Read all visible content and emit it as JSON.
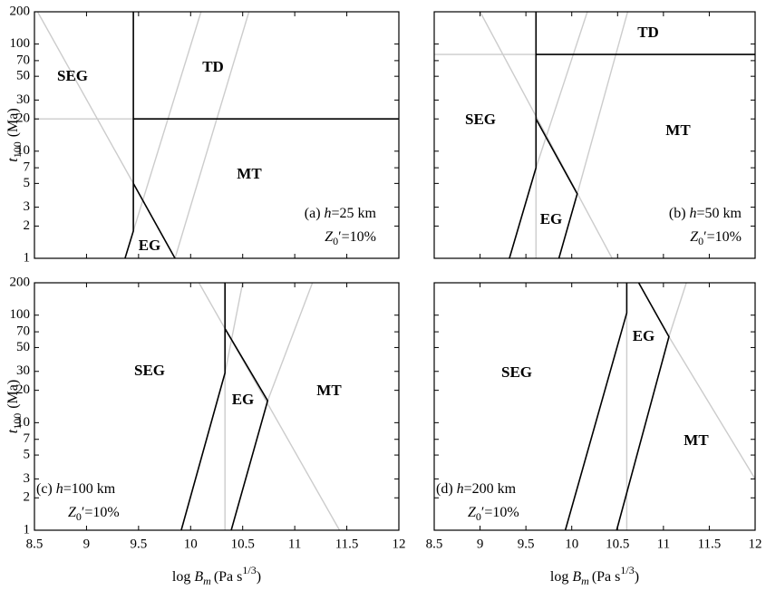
{
  "chart_data": [
    {
      "type": "line",
      "annotation": {
        "tag": "(a)",
        "symbol": "h",
        "text": "=25 km"
      },
      "z_annotation": {
        "symbol": "Z",
        "subscript": "0",
        "text": "′=10%"
      },
      "regions": [
        "SEG",
        "TD",
        "MT",
        "EG"
      ],
      "ylabel": {
        "symbol": "t",
        "subscript": "100",
        "unit": "(Ma)"
      },
      "xlim": [
        8.5,
        12
      ],
      "xticks": [
        8.5,
        9,
        9.5,
        10,
        10.5,
        11,
        11.5,
        12
      ],
      "ylim": [
        1,
        200
      ],
      "yticks": [
        1,
        2,
        3,
        5,
        7,
        10,
        20,
        30,
        50,
        70,
        100,
        200
      ],
      "log_y": true,
      "series": [
        {
          "color": "#000000",
          "x": [
            9.37,
            9.45,
            9.45
          ],
          "values": [
            1,
            1.8,
            200
          ]
        },
        {
          "color": "#000000",
          "x": [
            9.45,
            12
          ],
          "values": [
            20,
            20
          ]
        },
        {
          "color": "#000000",
          "x": [
            9.45,
            9.85
          ],
          "values": [
            5,
            1
          ]
        },
        {
          "color": "#cccccc",
          "x": [
            8.5,
            9.45
          ],
          "values": [
            20,
            20
          ]
        },
        {
          "color": "#cccccc",
          "x": [
            8.53,
            9.45
          ],
          "values": [
            200,
            5
          ]
        },
        {
          "color": "#cccccc",
          "x": [
            9.45,
            10.1
          ],
          "values": [
            1.8,
            200
          ]
        },
        {
          "color": "#cccccc",
          "x": [
            9.85,
            10.56
          ],
          "values": [
            1,
            200
          ]
        }
      ]
    },
    {
      "type": "line",
      "annotation": {
        "tag": "(b)",
        "symbol": "h",
        "text": "=50 km"
      },
      "z_annotation": {
        "symbol": "Z",
        "subscript": "0",
        "text": "′=10%"
      },
      "regions": [
        "SEG",
        "TD",
        "MT",
        "EG"
      ],
      "xlim": [
        8.5,
        12
      ],
      "xticks": [
        8.5,
        9,
        9.5,
        10,
        10.5,
        11,
        11.5,
        12
      ],
      "ylim": [
        1,
        200
      ],
      "yticks": [
        1,
        2,
        3,
        5,
        7,
        10,
        20,
        30,
        50,
        70,
        100,
        200
      ],
      "log_y": true,
      "series": [
        {
          "color": "#000000",
          "x": [
            9.32,
            9.61,
            9.61
          ],
          "values": [
            1,
            7,
            200
          ]
        },
        {
          "color": "#000000",
          "x": [
            9.61,
            12
          ],
          "values": [
            80,
            80
          ]
        },
        {
          "color": "#000000",
          "x": [
            9.61,
            10.06,
            9.86
          ],
          "values": [
            20,
            4,
            1
          ]
        },
        {
          "color": "#cccccc",
          "x": [
            8.5,
            9.61
          ],
          "values": [
            80,
            80
          ]
        },
        {
          "color": "#cccccc",
          "x": [
            9.61,
            9.61
          ],
          "values": [
            7,
            1
          ]
        },
        {
          "color": "#cccccc",
          "x": [
            9.0,
            10.44
          ],
          "values": [
            200,
            1
          ]
        },
        {
          "color": "#cccccc",
          "x": [
            9.61,
            10.17
          ],
          "values": [
            7,
            200
          ]
        },
        {
          "color": "#cccccc",
          "x": [
            10.06,
            10.61
          ],
          "values": [
            4,
            200
          ]
        }
      ]
    },
    {
      "type": "line",
      "annotation": {
        "tag": "(c)",
        "symbol": "h",
        "text": "=100 km"
      },
      "z_annotation": {
        "symbol": "Z",
        "subscript": "0",
        "text": "′=10%"
      },
      "regions": [
        "SEG",
        "EG",
        "MT"
      ],
      "ylabel": {
        "symbol": "t",
        "subscript": "100",
        "unit": "(Ma)"
      },
      "xlabel": {
        "prefix": "log",
        "symbol": "B",
        "subscript": "m",
        "unit": "(Pa s",
        "superscript": "1/3",
        "close": ")"
      },
      "xlim": [
        8.5,
        12
      ],
      "xticks": [
        8.5,
        9,
        9.5,
        10,
        10.5,
        11,
        11.5,
        12
      ],
      "ylim": [
        1,
        200
      ],
      "yticks": [
        1,
        2,
        3,
        5,
        7,
        10,
        20,
        30,
        50,
        70,
        100,
        200
      ],
      "log_y": true,
      "series": [
        {
          "color": "#000000",
          "x": [
            9.91,
            10.33,
            10.33
          ],
          "values": [
            1,
            29,
            200
          ]
        },
        {
          "color": "#000000",
          "x": [
            10.33,
            10.74,
            10.39
          ],
          "values": [
            75,
            16,
            1
          ]
        },
        {
          "color": "#cccccc",
          "x": [
            10.33,
            10.33
          ],
          "values": [
            29,
            1
          ]
        },
        {
          "color": "#cccccc",
          "x": [
            10.08,
            11.43
          ],
          "values": [
            200,
            1
          ]
        },
        {
          "color": "#cccccc",
          "x": [
            10.33,
            10.5
          ],
          "values": [
            29,
            200
          ]
        },
        {
          "color": "#cccccc",
          "x": [
            10.74,
            11.17
          ],
          "values": [
            16,
            200
          ]
        }
      ]
    },
    {
      "type": "line",
      "annotation": {
        "tag": "(d)",
        "symbol": "h",
        "text": "=200 km"
      },
      "z_annotation": {
        "symbol": "Z",
        "subscript": "0",
        "text": "′=10%"
      },
      "regions": [
        "SEG",
        "EG",
        "MT"
      ],
      "xlabel": {
        "prefix": "log",
        "symbol": "B",
        "subscript": "m",
        "unit": "(Pa s",
        "superscript": "1/3",
        "close": ")"
      },
      "xlim": [
        8.5,
        12
      ],
      "xticks": [
        8.5,
        9,
        9.5,
        10,
        10.5,
        11,
        11.5,
        12
      ],
      "ylim": [
        1,
        200
      ],
      "yticks": [
        1,
        2,
        3,
        5,
        7,
        10,
        20,
        30,
        50,
        70,
        100,
        200
      ],
      "log_y": true,
      "series": [
        {
          "color": "#000000",
          "x": [
            9.93,
            10.6,
            10.6
          ],
          "values": [
            1,
            105,
            200
          ]
        },
        {
          "color": "#000000",
          "x": [
            10.73,
            11.06,
            10.49
          ],
          "values": [
            200,
            63,
            1
          ]
        },
        {
          "color": "#cccccc",
          "x": [
            10.6,
            10.6
          ],
          "values": [
            105,
            1
          ]
        },
        {
          "color": "#cccccc",
          "x": [
            11.06,
            12
          ],
          "values": [
            63,
            3
          ]
        },
        {
          "color": "#cccccc",
          "x": [
            11.06,
            11.25
          ],
          "values": [
            63,
            200
          ]
        }
      ]
    }
  ]
}
